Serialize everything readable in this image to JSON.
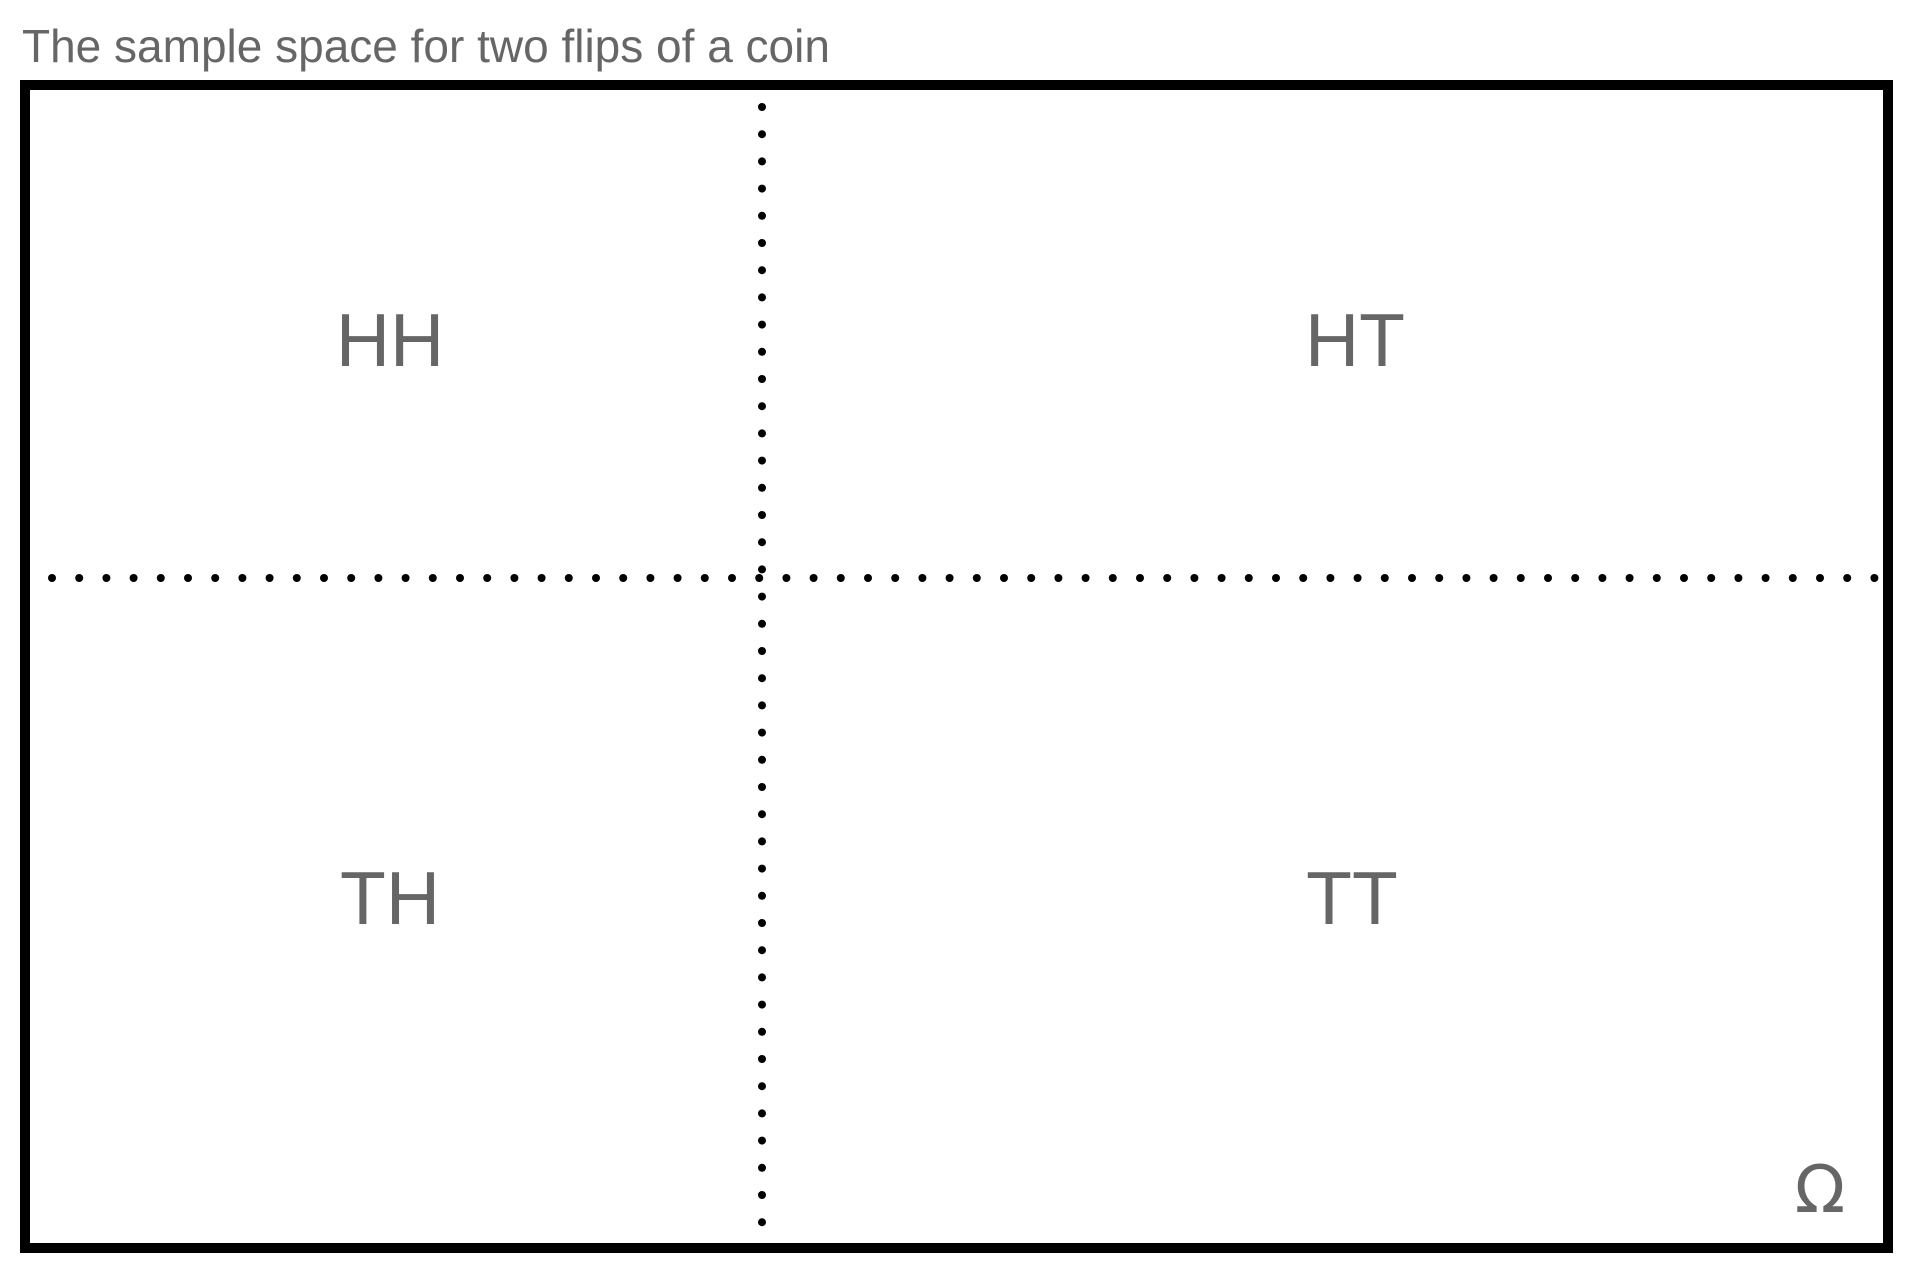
{
  "title": "The sample space for two flips of a coin",
  "outcomes": {
    "top_left": "HH",
    "top_right": "HT",
    "bottom_left": "TH",
    "bottom_right": "TT"
  },
  "sample_space_symbol": "Ω",
  "colors": {
    "text": "#666666",
    "border": "#000000",
    "dots": "#000000",
    "background": "#ffffff"
  }
}
